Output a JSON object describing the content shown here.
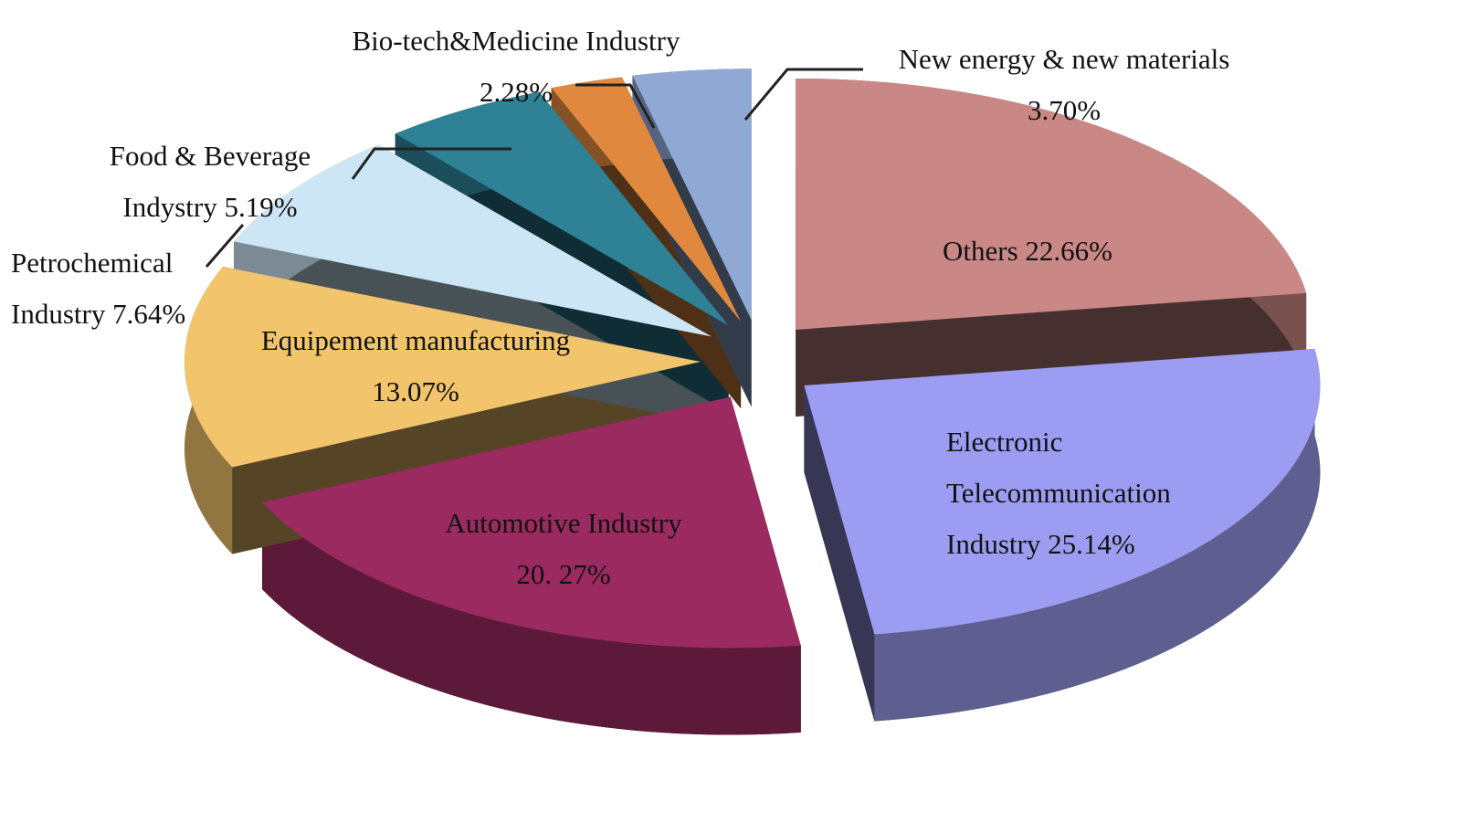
{
  "chart_data": {
    "type": "pie3d",
    "categories": [
      "Others",
      "Electronic Telecommunication Industry",
      "Automotive Industry",
      "Equipement manufacturing",
      "Petrochemical Industry",
      "Food & Beverage Indystry",
      "Bio-tech&Medicine Industry",
      "New energy & new materials"
    ],
    "values": [
      22.66,
      25.14,
      20.27,
      13.07,
      7.64,
      5.19,
      2.28,
      3.7
    ],
    "value_labels": [
      "22.66%",
      "25.14%",
      "20. 27%",
      "13.07%",
      "7.64%",
      "5.19%",
      "2.28%",
      "3.70%"
    ],
    "colors": [
      "#c98886",
      "#9c9df2",
      "#9a2a5f",
      "#f2c46c",
      "#cde6f6",
      "#2f8196",
      "#e0893e",
      "#8fa8d4"
    ]
  }
}
